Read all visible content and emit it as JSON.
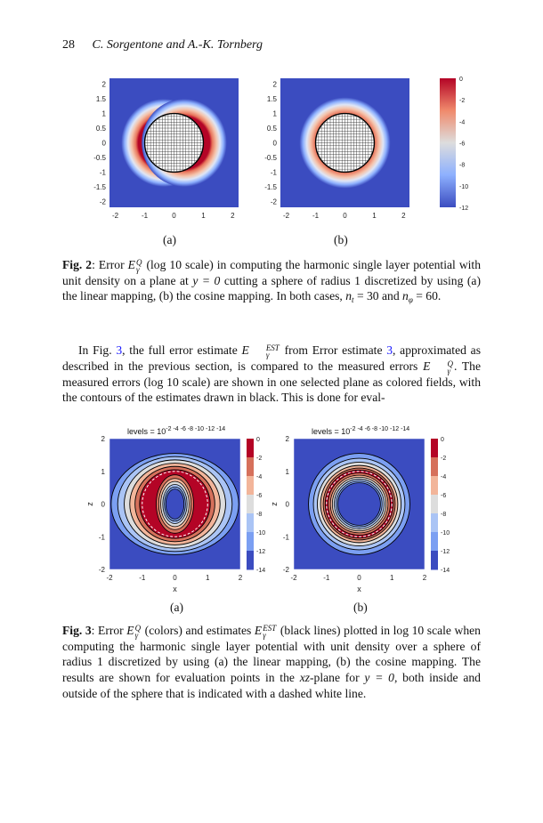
{
  "header": {
    "page_number": "28",
    "authors": "C. Sorgentone and A.-K. Tornberg"
  },
  "fig2": {
    "panels": [
      "(a)",
      "(b)"
    ],
    "y_ticks": [
      "2",
      "1.5",
      "1",
      "0.5",
      "0",
      "-0.5",
      "-1",
      "-1.5",
      "-2"
    ],
    "x_ticks": [
      "-2",
      "-1",
      "0",
      "1",
      "2"
    ],
    "colorbar_ticks": [
      "0",
      "-2",
      "-4",
      "-6",
      "-8",
      "-10",
      "-12"
    ],
    "colors": {
      "background": "#3b4cc0",
      "high": "#b40426",
      "mid": "#dddddd"
    },
    "caption": {
      "label": "Fig. 2",
      "t1": ": Error ",
      "E": "E",
      "E_sup": "Q",
      "E_sub": "γ",
      "t2": " (log 10 scale) in computing the harmonic single layer potential with unit density on a plane at ",
      "m1": "y = 0",
      "t3": " cutting a sphere of radius 1 discretized by using (a) the linear mapping, (b) the cosine mapping. In both cases, ",
      "n1": "n",
      "n1_sub": "t",
      "t4": " = 30 and ",
      "n2": "n",
      "n2_sub": "φ",
      "t5": " = 60."
    }
  },
  "paragraph": {
    "t1": "In Fig. ",
    "ref1": "3",
    "t2": ", the full error estimate ",
    "E1": "E",
    "E1_sup": "EST",
    "E1_sub": "γ",
    "t3": " from Error estimate ",
    "ref2": "3",
    "t4": ", approximated as described in the previous section, is compared to the measured errors ",
    "E2": "E",
    "E2_sup": "Q",
    "E2_sub": "γ",
    "t5": ". The measured errors (log 10 scale) are shown in one selected plane as colored fields, with the contours of the estimates drawn in black. This is done for eval-",
    "link_color": "#1a1aff"
  },
  "fig3": {
    "panels": [
      "(a)",
      "(b)"
    ],
    "title": "levels = 10",
    "title_sup": "-2  -4  -6  -8 -10 -12 -14",
    "y_ticks": [
      "2",
      "1",
      "0",
      "-1",
      "-2"
    ],
    "x_ticks": [
      "-2",
      "-1",
      "0",
      "1",
      "2"
    ],
    "xlabel": "x",
    "ylabel": "z",
    "colorbar_ticks": [
      "0",
      "-2",
      "-4",
      "-6",
      "-8",
      "-10",
      "-12",
      "-14"
    ],
    "band_colors": [
      "#b40426",
      "#d6705b",
      "#f2b59a",
      "#dddddd",
      "#aac4f5",
      "#7b9ff2",
      "#3b4cc0"
    ],
    "caption": {
      "label": "Fig. 3",
      "t1": ": Error ",
      "E1": "E",
      "E1_sup": "Q",
      "E1_sub": "γ",
      "t2": " (colors) and estimates ",
      "E2": "E",
      "E2_sup": "EST",
      "E2_sub": "γ",
      "t3": " (black lines) plotted in log 10 scale when computing the harmonic single layer potential with unit density over a sphere of radius 1 discretized by using (a) the linear mapping, (b) the cosine mapping. The results are shown for evaluation points in the ",
      "m1": "xz",
      "t4": "-plane for ",
      "m2": "y = 0",
      "t5": ", both inside and outside of the sphere that is indicated with a dashed white line."
    }
  }
}
